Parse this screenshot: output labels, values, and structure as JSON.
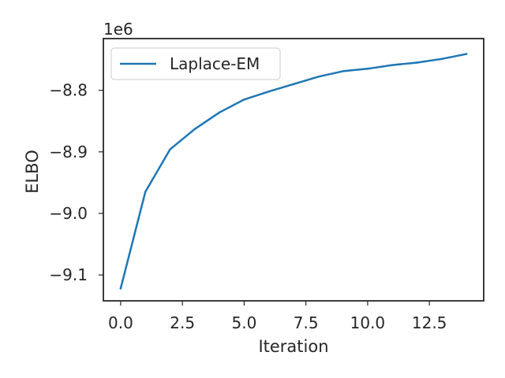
{
  "chart_data": {
    "type": "line",
    "title": "",
    "xlabel": "Iteration",
    "ylabel": "ELBO",
    "y_offset_label": "1e6",
    "x_ticks": [
      "0.0",
      "2.5",
      "5.0",
      "7.5",
      "10.0",
      "12.5"
    ],
    "x_tick_values": [
      0,
      2.5,
      5,
      7.5,
      10,
      12.5
    ],
    "y_ticks": [
      "−8.8",
      "−8.9",
      "−9.0",
      "−9.1"
    ],
    "y_tick_values": [
      -8.8,
      -8.9,
      -9.0,
      -9.1
    ],
    "xlim": [
      -0.7,
      14.7
    ],
    "ylim": [
      -9.142,
      -8.716
    ],
    "grid": false,
    "legend_position": "top-left",
    "series": [
      {
        "name": "Laplace-EM",
        "color": "#1f77b4",
        "x": [
          0,
          1,
          2,
          3,
          4,
          5,
          6,
          7,
          8,
          9,
          10,
          11,
          12,
          13,
          14
        ],
        "y": [
          -9.122,
          -8.965,
          -8.896,
          -8.863,
          -8.836,
          -8.815,
          -8.802,
          -8.79,
          -8.778,
          -8.769,
          -8.765,
          -8.759,
          -8.755,
          -8.749,
          -8.741
        ]
      }
    ]
  }
}
